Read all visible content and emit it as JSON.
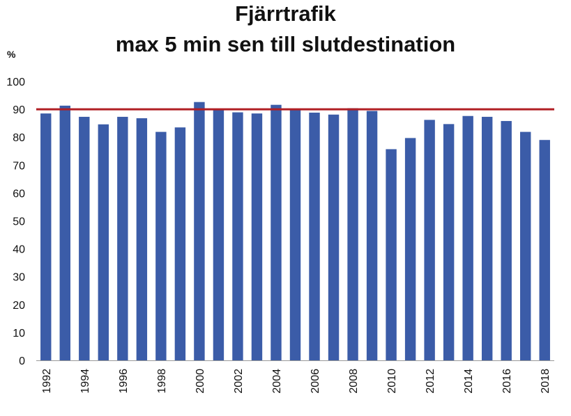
{
  "title_line1": "Fjärrtrafik",
  "title_line2": "max 5 min sen till slutdestination",
  "unit": "%",
  "colors": {
    "bar": "#3b5ca8",
    "target_line": "#b01e23",
    "axis": "#999999"
  },
  "chart_data": {
    "type": "bar",
    "title": "Fjärrtrafik max 5 min sen till slutdestination",
    "ylabel": "%",
    "xlabel": "",
    "ylim": [
      0,
      100
    ],
    "yticks": [
      0,
      10,
      20,
      30,
      40,
      50,
      60,
      70,
      80,
      90,
      100
    ],
    "grid": false,
    "categories": [
      "1992",
      "1993",
      "1994",
      "1995",
      "1996",
      "1997",
      "1998",
      "1999",
      "2000",
      "2001",
      "2002",
      "2003",
      "2004",
      "2005",
      "2006",
      "2007",
      "2008",
      "2009",
      "2010",
      "2011",
      "2012",
      "2013",
      "2014",
      "2015",
      "2016",
      "2017",
      "2018"
    ],
    "xtick_labels": [
      "1992",
      "",
      "1994",
      "",
      "1996",
      "",
      "1998",
      "",
      "2000",
      "",
      "2002",
      "",
      "2004",
      "",
      "2006",
      "",
      "2008",
      "",
      "2010",
      "",
      "2012",
      "",
      "2014",
      "",
      "2016",
      "",
      "2018"
    ],
    "values": [
      88.5,
      91.3,
      87.3,
      84.6,
      87.3,
      86.8,
      81.9,
      83.5,
      92.6,
      90.0,
      88.9,
      88.5,
      91.6,
      90.0,
      88.8,
      88.1,
      90.4,
      89.4,
      75.7,
      79.7,
      86.2,
      84.7,
      87.6,
      87.3,
      85.8,
      81.9,
      79.0
    ],
    "reference_line": {
      "value": 90
    }
  }
}
